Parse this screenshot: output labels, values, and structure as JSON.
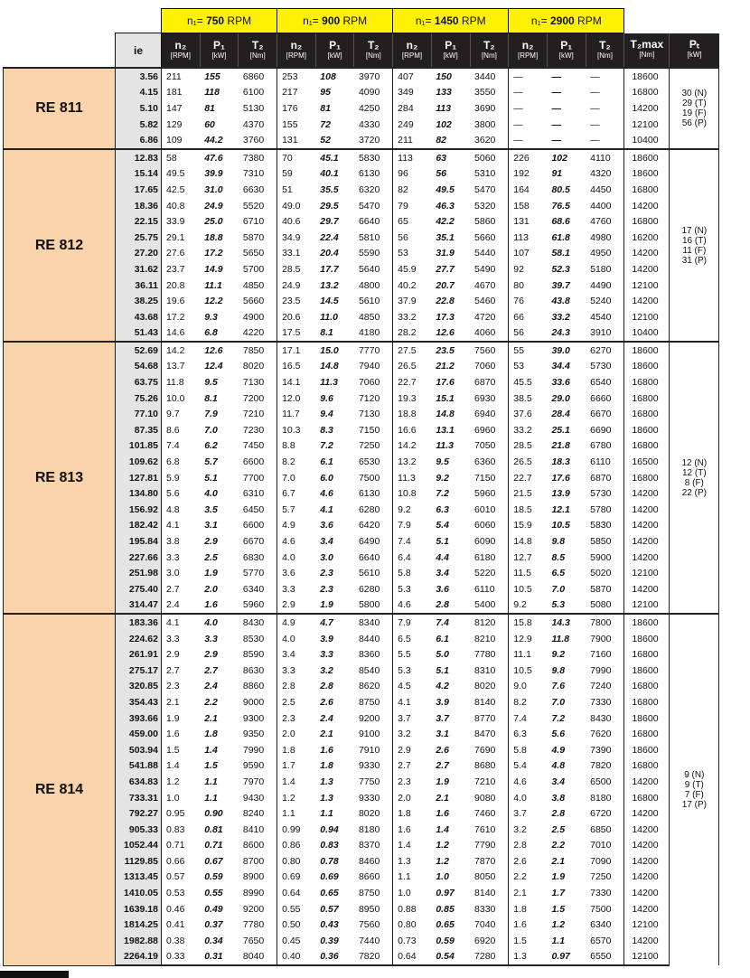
{
  "header": {
    "ie_label": "ie",
    "speed_groups": [
      {
        "prefix": "n₁= ",
        "speed": "750",
        "unit": " RPM"
      },
      {
        "prefix": "n₁= ",
        "speed": "900",
        "unit": " RPM"
      },
      {
        "prefix": "n₁= ",
        "speed": "1450",
        "unit": " RPM"
      },
      {
        "prefix": "n₁= ",
        "speed": "2900",
        "unit": " RPM"
      }
    ],
    "sub_columns": [
      {
        "symbol": "n₂",
        "unit": "[RPM]"
      },
      {
        "symbol": "P₁",
        "unit": "[kW]"
      },
      {
        "symbol": "T₂",
        "unit": "[Nm]"
      }
    ],
    "t2max": {
      "symbol": "T₂max",
      "unit": "[Nm]"
    },
    "pt": {
      "symbol": "Pₜ",
      "unit": "[kW]"
    }
  },
  "colors": {
    "header_yellow": "#fff200",
    "header_dark": "#231f20",
    "model_fill": "#f9d3ac",
    "ie_fill": "#e4e4e4"
  },
  "groups": [
    {
      "model": "RE 811",
      "pt": [
        "30 (N)",
        "29 (T)",
        "19 (F)",
        "56 (P)"
      ],
      "rows": [
        [
          "3.56",
          "211",
          "155",
          "6860",
          "253",
          "108",
          "3970",
          "407",
          "150",
          "3440",
          "—",
          "—",
          "—",
          "18600"
        ],
        [
          "4.15",
          "181",
          "118",
          "6100",
          "217",
          "95",
          "4090",
          "349",
          "133",
          "3550",
          "—",
          "—",
          "—",
          "16800"
        ],
        [
          "5.10",
          "147",
          "81",
          "5130",
          "176",
          "81",
          "4250",
          "284",
          "113",
          "3690",
          "—",
          "—",
          "—",
          "14200"
        ],
        [
          "5.82",
          "129",
          "60",
          "4370",
          "155",
          "72",
          "4330",
          "249",
          "102",
          "3800",
          "—",
          "—",
          "—",
          "12100"
        ],
        [
          "6.86",
          "109",
          "44.2",
          "3760",
          "131",
          "52",
          "3720",
          "211",
          "82",
          "3620",
          "—",
          "—",
          "—",
          "10400"
        ]
      ]
    },
    {
      "model": "RE 812",
      "pt": [
        "17 (N)",
        "16 (T)",
        "11 (F)",
        "31 (P)"
      ],
      "rows": [
        [
          "12.83",
          "58",
          "47.6",
          "7380",
          "70",
          "45.1",
          "5830",
          "113",
          "63",
          "5060",
          "226",
          "102",
          "4110",
          "18600"
        ],
        [
          "15.14",
          "49.5",
          "39.9",
          "7310",
          "59",
          "40.1",
          "6130",
          "96",
          "56",
          "5310",
          "192",
          "91",
          "4320",
          "18600"
        ],
        [
          "17.65",
          "42.5",
          "31.0",
          "6630",
          "51",
          "35.5",
          "6320",
          "82",
          "49.5",
          "5470",
          "164",
          "80.5",
          "4450",
          "16800"
        ],
        [
          "18.36",
          "40.8",
          "24.9",
          "5520",
          "49.0",
          "29.5",
          "5470",
          "79",
          "46.3",
          "5320",
          "158",
          "76.5",
          "4400",
          "14200"
        ],
        [
          "22.15",
          "33.9",
          "25.0",
          "6710",
          "40.6",
          "29.7",
          "6640",
          "65",
          "42.2",
          "5860",
          "131",
          "68.6",
          "4760",
          "16800"
        ],
        [
          "25.75",
          "29.1",
          "18.8",
          "5870",
          "34.9",
          "22.4",
          "5810",
          "56",
          "35.1",
          "5660",
          "113",
          "61.8",
          "4980",
          "16200"
        ],
        [
          "27.20",
          "27.6",
          "17.2",
          "5650",
          "33.1",
          "20.4",
          "5590",
          "53",
          "31.9",
          "5440",
          "107",
          "58.1",
          "4950",
          "14200"
        ],
        [
          "31.62",
          "23.7",
          "14.9",
          "5700",
          "28.5",
          "17.7",
          "5640",
          "45.9",
          "27.7",
          "5490",
          "92",
          "52.3",
          "5180",
          "14200"
        ],
        [
          "36.11",
          "20.8",
          "11.1",
          "4850",
          "24.9",
          "13.2",
          "4800",
          "40.2",
          "20.7",
          "4670",
          "80",
          "39.7",
          "4490",
          "12100"
        ],
        [
          "38.25",
          "19.6",
          "12.2",
          "5660",
          "23.5",
          "14.5",
          "5610",
          "37.9",
          "22.8",
          "5460",
          "76",
          "43.8",
          "5240",
          "14200"
        ],
        [
          "43.68",
          "17.2",
          "9.3",
          "4900",
          "20.6",
          "11.0",
          "4850",
          "33.2",
          "17.3",
          "4720",
          "66",
          "33.2",
          "4540",
          "12100"
        ],
        [
          "51.43",
          "14.6",
          "6.8",
          "4220",
          "17.5",
          "8.1",
          "4180",
          "28.2",
          "12.6",
          "4060",
          "56",
          "24.3",
          "3910",
          "10400"
        ]
      ]
    },
    {
      "model": "RE 813",
      "pt": [
        "12 (N)",
        "12 (T)",
        "8 (F)",
        "22 (P)"
      ],
      "rows": [
        [
          "52.69",
          "14.2",
          "12.6",
          "7850",
          "17.1",
          "15.0",
          "7770",
          "27.5",
          "23.5",
          "7560",
          "55",
          "39.0",
          "6270",
          "18600"
        ],
        [
          "54.68",
          "13.7",
          "12.4",
          "8020",
          "16.5",
          "14.8",
          "7940",
          "26.5",
          "21.2",
          "7060",
          "53",
          "34.4",
          "5730",
          "18600"
        ],
        [
          "63.75",
          "11.8",
          "9.5",
          "7130",
          "14.1",
          "11.3",
          "7060",
          "22.7",
          "17.6",
          "6870",
          "45.5",
          "33.6",
          "6540",
          "16800"
        ],
        [
          "75.26",
          "10.0",
          "8.1",
          "7200",
          "12.0",
          "9.6",
          "7120",
          "19.3",
          "15.1",
          "6930",
          "38.5",
          "29.0",
          "6660",
          "16800"
        ],
        [
          "77.10",
          "9.7",
          "7.9",
          "7210",
          "11.7",
          "9.4",
          "7130",
          "18.8",
          "14.8",
          "6940",
          "37.6",
          "28.4",
          "6670",
          "16800"
        ],
        [
          "87.35",
          "8.6",
          "7.0",
          "7230",
          "10.3",
          "8.3",
          "7150",
          "16.6",
          "13.1",
          "6960",
          "33.2",
          "25.1",
          "6690",
          "18600"
        ],
        [
          "101.85",
          "7.4",
          "6.2",
          "7450",
          "8.8",
          "7.2",
          "7250",
          "14.2",
          "11.3",
          "7050",
          "28.5",
          "21.8",
          "6780",
          "16800"
        ],
        [
          "109.62",
          "6.8",
          "5.7",
          "6600",
          "8.2",
          "6.1",
          "6530",
          "13.2",
          "9.5",
          "6360",
          "26.5",
          "18.3",
          "6110",
          "16500"
        ],
        [
          "127.81",
          "5.9",
          "5.1",
          "7700",
          "7.0",
          "6.0",
          "7500",
          "11.3",
          "9.2",
          "7150",
          "22.7",
          "17.6",
          "6870",
          "16800"
        ],
        [
          "134.80",
          "5.6",
          "4.0",
          "6310",
          "6.7",
          "4.6",
          "6130",
          "10.8",
          "7.2",
          "5960",
          "21.5",
          "13.9",
          "5730",
          "14200"
        ],
        [
          "156.92",
          "4.8",
          "3.5",
          "6450",
          "5.7",
          "4.1",
          "6280",
          "9.2",
          "6.3",
          "6010",
          "18.5",
          "12.1",
          "5780",
          "14200"
        ],
        [
          "182.42",
          "4.1",
          "3.1",
          "6600",
          "4.9",
          "3.6",
          "6420",
          "7.9",
          "5.4",
          "6060",
          "15.9",
          "10.5",
          "5830",
          "14200"
        ],
        [
          "195.84",
          "3.8",
          "2.9",
          "6670",
          "4.6",
          "3.4",
          "6490",
          "7.4",
          "5.1",
          "6090",
          "14.8",
          "9.8",
          "5850",
          "14200"
        ],
        [
          "227.66",
          "3.3",
          "2.5",
          "6830",
          "4.0",
          "3.0",
          "6640",
          "6.4",
          "4.4",
          "6180",
          "12.7",
          "8.5",
          "5900",
          "14200"
        ],
        [
          "251.98",
          "3.0",
          "1.9",
          "5770",
          "3.6",
          "2.3",
          "5610",
          "5.8",
          "3.4",
          "5220",
          "11.5",
          "6.5",
          "5020",
          "12100"
        ],
        [
          "275.40",
          "2.7",
          "2.0",
          "6340",
          "3.3",
          "2.3",
          "6280",
          "5.3",
          "3.6",
          "6110",
          "10.5",
          "7.0",
          "5870",
          "14200"
        ],
        [
          "314.47",
          "2.4",
          "1.6",
          "5960",
          "2.9",
          "1.9",
          "5800",
          "4.6",
          "2.8",
          "5400",
          "9.2",
          "5.3",
          "5080",
          "12100"
        ]
      ]
    },
    {
      "model": "RE 814",
      "pt": [
        "9 (N)",
        "9 (T)",
        "7 (F)",
        "17 (P)"
      ],
      "rows": [
        [
          "183.36",
          "4.1",
          "4.0",
          "8430",
          "4.9",
          "4.7",
          "8340",
          "7.9",
          "7.4",
          "8120",
          "15.8",
          "14.3",
          "7800",
          "18600"
        ],
        [
          "224.62",
          "3.3",
          "3.3",
          "8530",
          "4.0",
          "3.9",
          "8440",
          "6.5",
          "6.1",
          "8210",
          "12.9",
          "11.8",
          "7900",
          "18600"
        ],
        [
          "261.91",
          "2.9",
          "2.9",
          "8590",
          "3.4",
          "3.3",
          "8360",
          "5.5",
          "5.0",
          "7780",
          "11.1",
          "9.2",
          "7160",
          "16800"
        ],
        [
          "275.17",
          "2.7",
          "2.7",
          "8630",
          "3.3",
          "3.2",
          "8540",
          "5.3",
          "5.1",
          "8310",
          "10.5",
          "9.8",
          "7990",
          "18600"
        ],
        [
          "320.85",
          "2.3",
          "2.4",
          "8860",
          "2.8",
          "2.8",
          "8620",
          "4.5",
          "4.2",
          "8020",
          "9.0",
          "7.6",
          "7240",
          "16800"
        ],
        [
          "354.43",
          "2.1",
          "2.2",
          "9000",
          "2.5",
          "2.6",
          "8750",
          "4.1",
          "3.9",
          "8140",
          "8.2",
          "7.0",
          "7330",
          "16800"
        ],
        [
          "393.66",
          "1.9",
          "2.1",
          "9300",
          "2.3",
          "2.4",
          "9200",
          "3.7",
          "3.7",
          "8770",
          "7.4",
          "7.2",
          "8430",
          "18600"
        ],
        [
          "459.00",
          "1.6",
          "1.8",
          "9350",
          "2.0",
          "2.1",
          "9100",
          "3.2",
          "3.1",
          "8470",
          "6.3",
          "5.6",
          "7620",
          "16800"
        ],
        [
          "503.94",
          "1.5",
          "1.4",
          "7990",
          "1.8",
          "1.6",
          "7910",
          "2.9",
          "2.6",
          "7690",
          "5.8",
          "4.9",
          "7390",
          "18600"
        ],
        [
          "541.88",
          "1.4",
          "1.5",
          "9590",
          "1.7",
          "1.8",
          "9330",
          "2.7",
          "2.7",
          "8680",
          "5.4",
          "4.8",
          "7820",
          "16800"
        ],
        [
          "634.83",
          "1.2",
          "1.1",
          "7970",
          "1.4",
          "1.3",
          "7750",
          "2.3",
          "1.9",
          "7210",
          "4.6",
          "3.4",
          "6500",
          "14200"
        ],
        [
          "733.31",
          "1.0",
          "1.1",
          "9430",
          "1.2",
          "1.3",
          "9330",
          "2.0",
          "2.1",
          "9080",
          "4.0",
          "3.8",
          "8180",
          "16800"
        ],
        [
          "792.27",
          "0.95",
          "0.90",
          "8240",
          "1.1",
          "1.1",
          "8020",
          "1.8",
          "1.6",
          "7460",
          "3.7",
          "2.8",
          "6720",
          "14200"
        ],
        [
          "905.33",
          "0.83",
          "0.81",
          "8410",
          "0.99",
          "0.94",
          "8180",
          "1.6",
          "1.4",
          "7610",
          "3.2",
          "2.5",
          "6850",
          "14200"
        ],
        [
          "1052.44",
          "0.71",
          "0.71",
          "8600",
          "0.86",
          "0.83",
          "8370",
          "1.4",
          "1.2",
          "7790",
          "2.8",
          "2.2",
          "7010",
          "14200"
        ],
        [
          "1129.85",
          "0.66",
          "0.67",
          "8700",
          "0.80",
          "0.78",
          "8460",
          "1.3",
          "1.2",
          "7870",
          "2.6",
          "2.1",
          "7090",
          "14200"
        ],
        [
          "1313.45",
          "0.57",
          "0.59",
          "8900",
          "0.69",
          "0.69",
          "8660",
          "1.1",
          "1.0",
          "8050",
          "2.2",
          "1.9",
          "7250",
          "14200"
        ],
        [
          "1410.05",
          "0.53",
          "0.55",
          "8990",
          "0.64",
          "0.65",
          "8750",
          "1.0",
          "0.97",
          "8140",
          "2.1",
          "1.7",
          "7330",
          "14200"
        ],
        [
          "1639.18",
          "0.46",
          "0.49",
          "9200",
          "0.55",
          "0.57",
          "8950",
          "0.88",
          "0.85",
          "8330",
          "1.8",
          "1.5",
          "7500",
          "14200"
        ],
        [
          "1814.25",
          "0.41",
          "0.37",
          "7780",
          "0.50",
          "0.43",
          "7560",
          "0.80",
          "0.65",
          "7040",
          "1.6",
          "1.2",
          "6340",
          "12100"
        ],
        [
          "1982.88",
          "0.38",
          "0.34",
          "7650",
          "0.45",
          "0.39",
          "7440",
          "0.73",
          "0.59",
          "6920",
          "1.5",
          "1.1",
          "6570",
          "14200"
        ],
        [
          "2264.19",
          "0.33",
          "0.31",
          "8040",
          "0.40",
          "0.36",
          "7820",
          "0.64",
          "0.54",
          "7280",
          "1.3",
          "0.97",
          "6550",
          "12100"
        ]
      ]
    }
  ]
}
